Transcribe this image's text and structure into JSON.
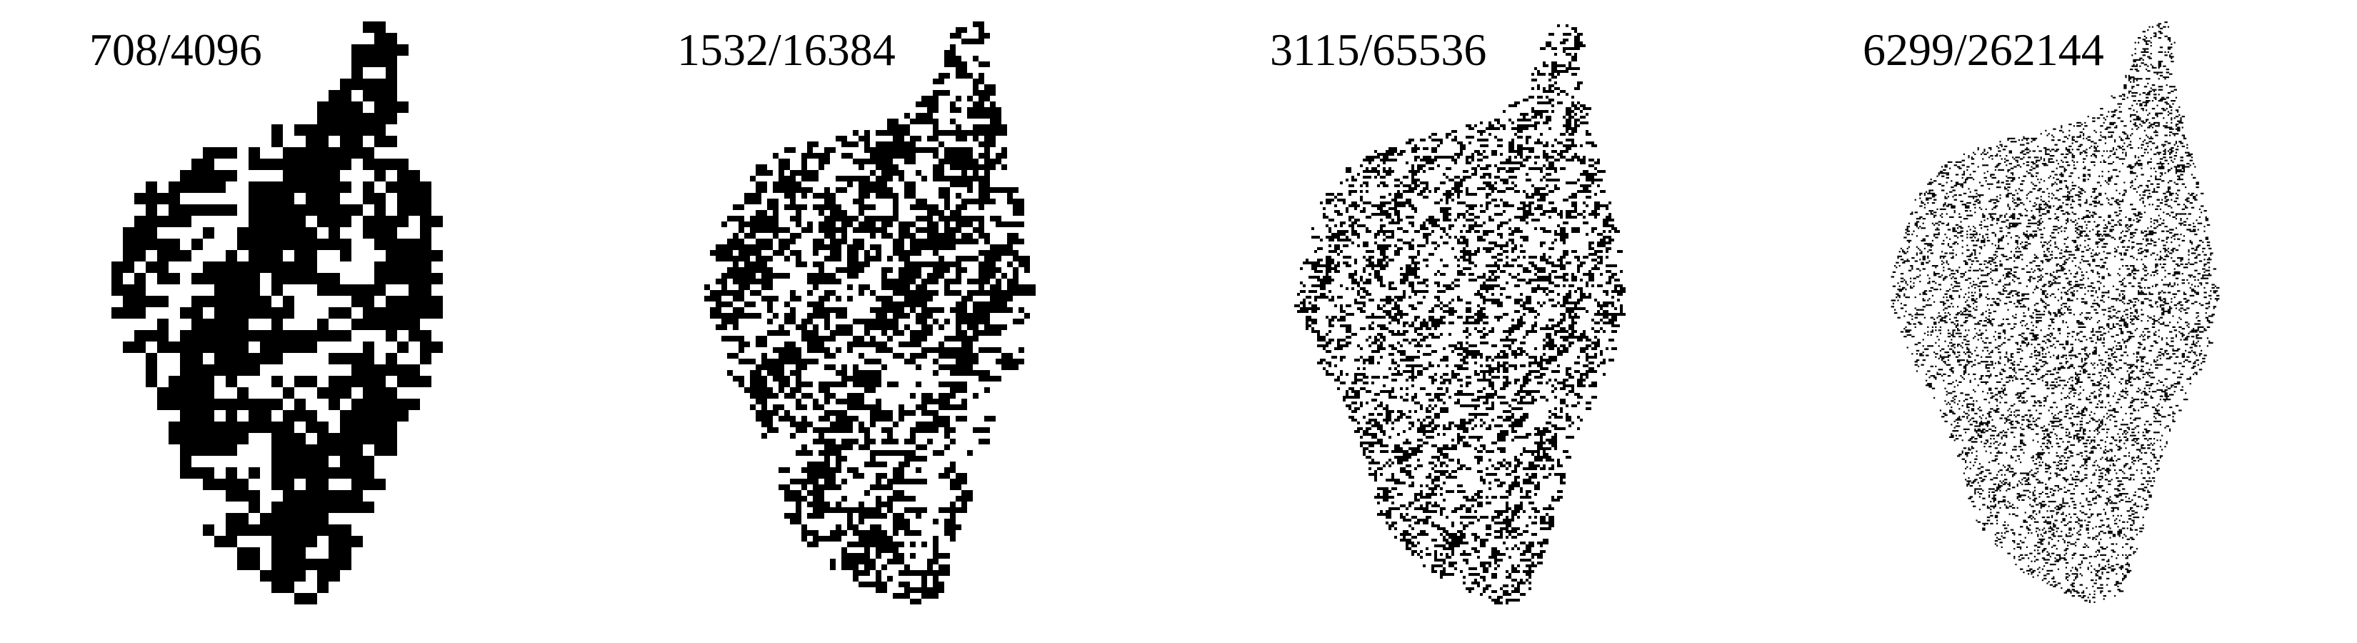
{
  "panels": [
    {
      "label": "708/4096",
      "grid": 64
    },
    {
      "label": "1532/16384",
      "grid": 128
    },
    {
      "label": "3115/65536",
      "grid": 256
    },
    {
      "label": "6299/262144",
      "grid": 512
    }
  ],
  "colors": {
    "ink": "#000000",
    "background": "#ffffff"
  }
}
